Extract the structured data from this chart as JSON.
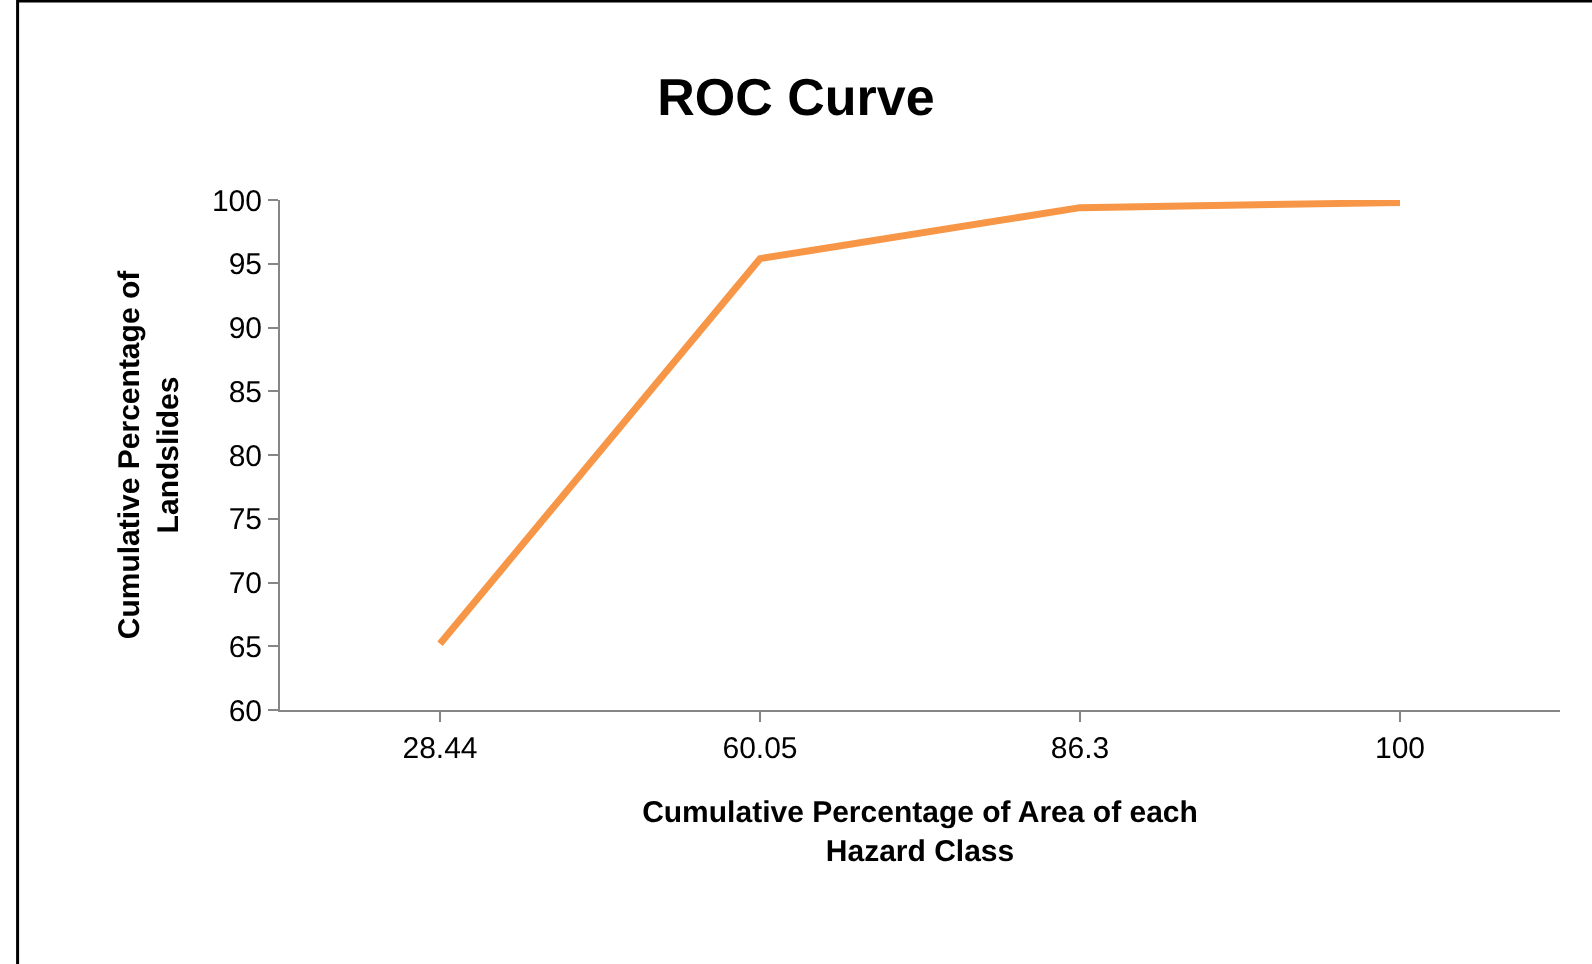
{
  "chart_data": {
    "type": "line",
    "title": "ROC Curve",
    "xlabel": "Cumulative Percentage of Area of each Hazard Class",
    "ylabel": "Cumulative Percentage of Landslides",
    "categories": [
      "28.44",
      "60.05",
      "86.3",
      "100"
    ],
    "series": [
      {
        "color": "#f79646",
        "values": [
          65.2,
          95.4,
          99.4,
          99.8
        ]
      }
    ],
    "ylim": [
      60,
      100
    ],
    "yticks": [
      60,
      65,
      70,
      75,
      80,
      85,
      90,
      95,
      100
    ],
    "marker": "none",
    "line_style": "solid"
  }
}
